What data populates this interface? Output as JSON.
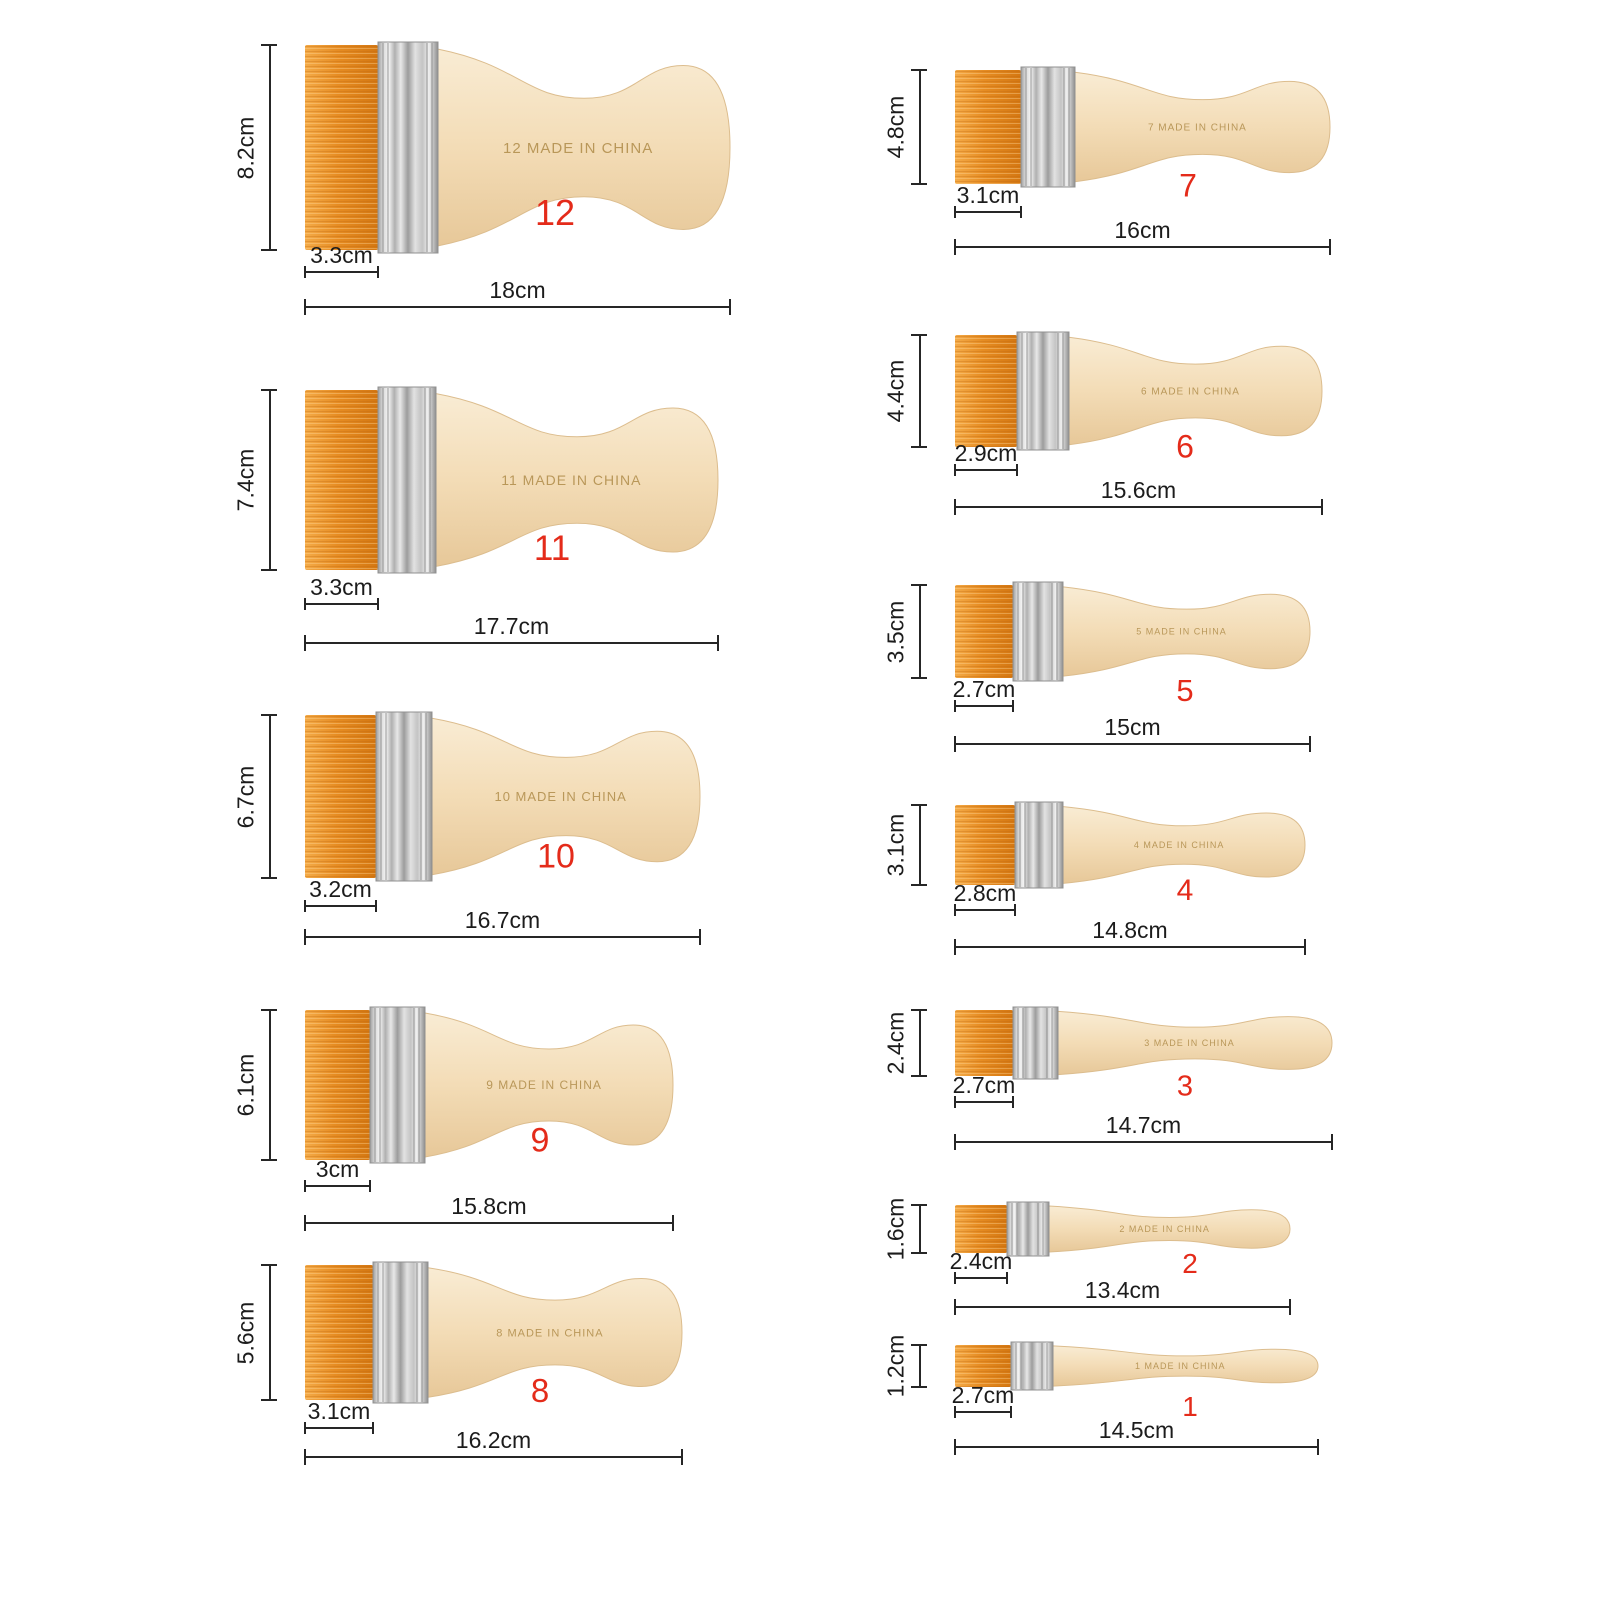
{
  "colors": {
    "background": "#ffffff",
    "bristle_orange": "#e68c22",
    "ferrule_silver": "#c8c8c8",
    "handle_wood": "#f3dcb6",
    "number_label_red": "#e42b1a",
    "dimension_line": "#262626",
    "handle_print_gold": "#b3904f"
  },
  "brushes": [
    {
      "number": "12",
      "height": "8.2cm",
      "width": "3.3cm",
      "length": "18cm",
      "handle_text": "12 MADE IN CHINA"
    },
    {
      "number": "11",
      "height": "7.4cm",
      "width": "3.3cm",
      "length": "17.7cm",
      "handle_text": "11 MADE IN CHINA"
    },
    {
      "number": "10",
      "height": "6.7cm",
      "width": "3.2cm",
      "length": "16.7cm",
      "handle_text": "10 MADE IN CHINA"
    },
    {
      "number": "9",
      "height": "6.1cm",
      "width": "3cm",
      "length": "15.8cm",
      "handle_text": "9 MADE IN CHINA"
    },
    {
      "number": "8",
      "height": "5.6cm",
      "width": "3.1cm",
      "length": "16.2cm",
      "handle_text": "8 MADE IN CHINA"
    },
    {
      "number": "7",
      "height": "4.8cm",
      "width": "3.1cm",
      "length": "16cm",
      "handle_text": "7 MADE IN CHINA"
    },
    {
      "number": "6",
      "height": "4.4cm",
      "width": "2.9cm",
      "length": "15.6cm",
      "handle_text": "6 MADE IN CHINA"
    },
    {
      "number": "5",
      "height": "3.5cm",
      "width": "2.7cm",
      "length": "15cm",
      "handle_text": "5 MADE IN CHINA"
    },
    {
      "number": "4",
      "height": "3.1cm",
      "width": "2.8cm",
      "length": "14.8cm",
      "handle_text": "4 MADE IN CHINA"
    },
    {
      "number": "3",
      "height": "2.4cm",
      "width": "2.7cm",
      "length": "14.7cm",
      "handle_text": "3 MADE IN CHINA"
    },
    {
      "number": "2",
      "height": "1.6cm",
      "width": "2.4cm",
      "length": "13.4cm",
      "handle_text": "2 MADE IN CHINA"
    },
    {
      "number": "1",
      "height": "1.2cm",
      "width": "2.7cm",
      "length": "14.5cm",
      "handle_text": "1 MADE IN CHINA"
    }
  ]
}
